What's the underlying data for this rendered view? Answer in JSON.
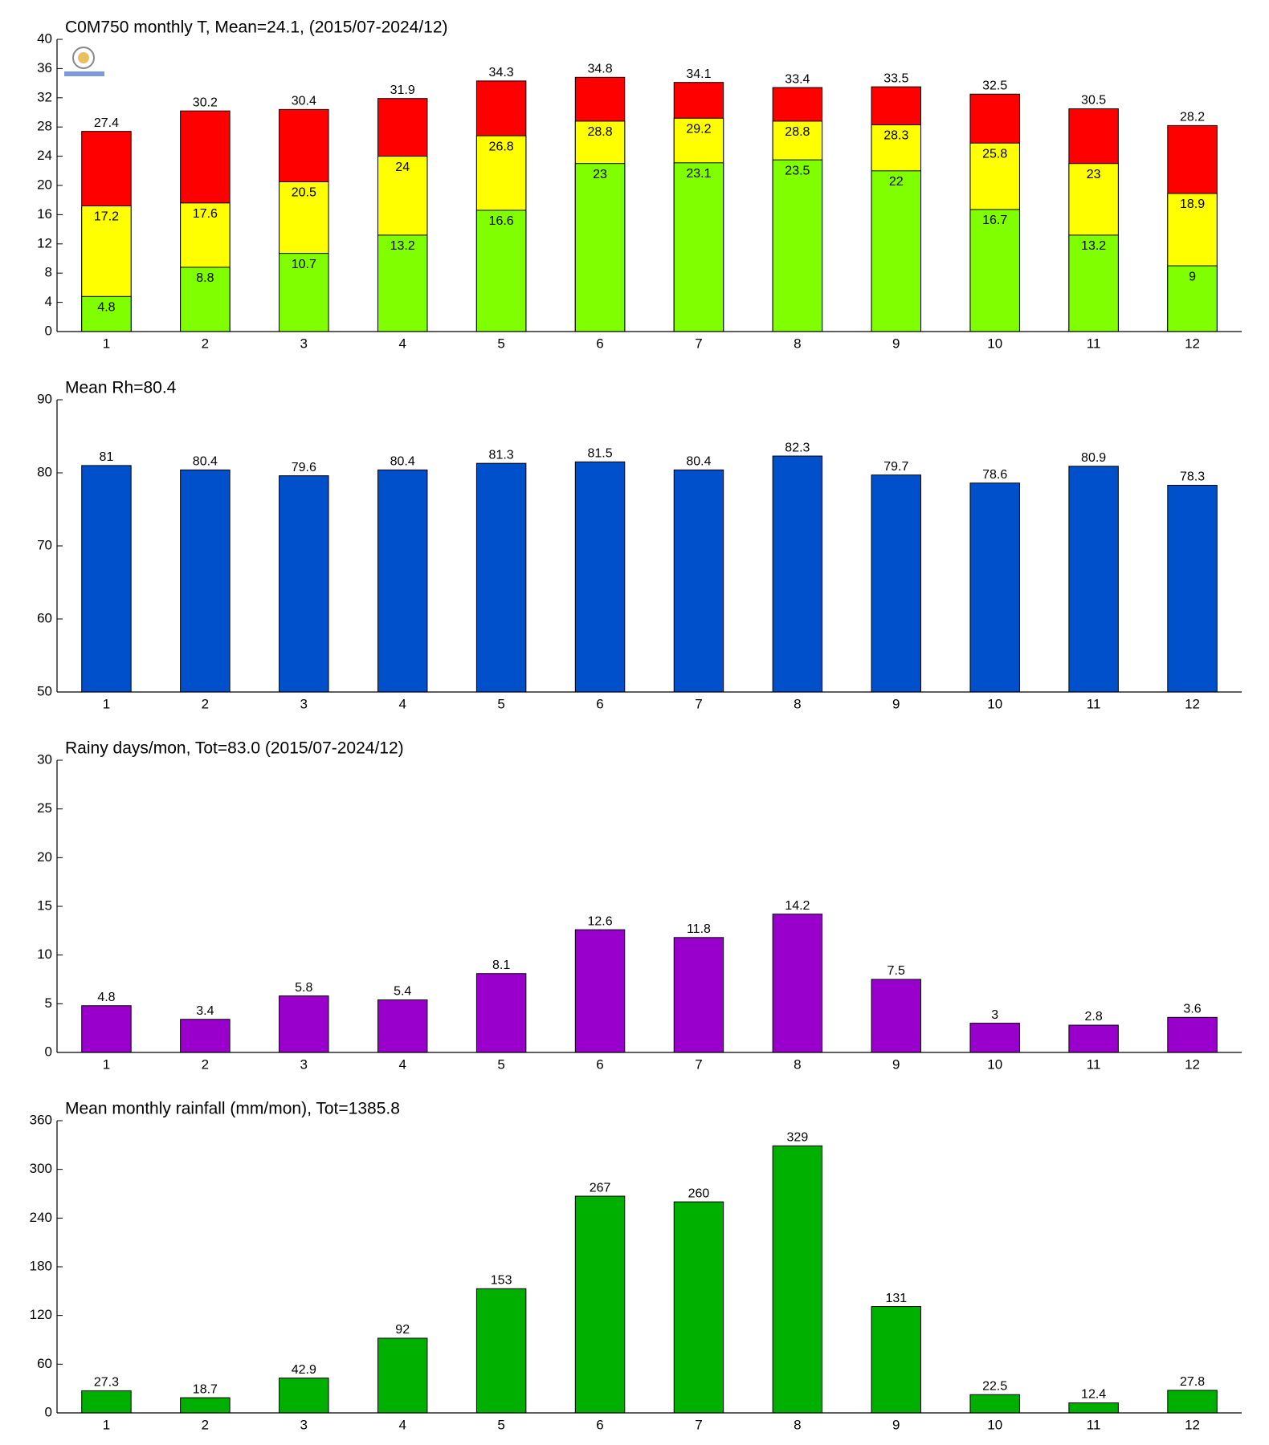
{
  "chart_data": [
    {
      "type": "bar",
      "title": "C0M750 monthly T, Mean=24.1, (2015/07-2024/12)",
      "categories": [
        1,
        2,
        3,
        4,
        5,
        6,
        7,
        8,
        9,
        10,
        11,
        12
      ],
      "series": [
        {
          "color": "#ff0000",
          "values": [
            27.4,
            30.2,
            30.4,
            31.9,
            34.3,
            34.8,
            34.1,
            33.4,
            33.5,
            32.5,
            30.5,
            28.2
          ]
        },
        {
          "color": "#ffff00",
          "values": [
            17.2,
            17.6,
            20.5,
            24,
            26.8,
            28.8,
            29.2,
            28.8,
            28.3,
            25.8,
            23,
            18.9
          ]
        },
        {
          "color": "#80ff00",
          "values": [
            4.8,
            8.8,
            10.7,
            13.2,
            16.6,
            23,
            23.1,
            23.5,
            22,
            16.7,
            13.2,
            9
          ]
        }
      ],
      "ylim": [
        0,
        40
      ],
      "yticks": [
        0,
        4,
        8,
        12,
        16,
        20,
        24,
        28,
        32,
        36,
        40
      ]
    },
    {
      "type": "bar",
      "title": "Mean Rh=80.4",
      "categories": [
        1,
        2,
        3,
        4,
        5,
        6,
        7,
        8,
        9,
        10,
        11,
        12
      ],
      "series": [
        {
          "color": "#0050cc",
          "values": [
            81,
            80.4,
            79.6,
            80.4,
            81.3,
            81.5,
            80.4,
            82.3,
            79.7,
            78.6,
            80.9,
            78.3
          ]
        }
      ],
      "ylim": [
        50,
        90
      ],
      "yticks": [
        50,
        60,
        70,
        80,
        90
      ]
    },
    {
      "type": "bar",
      "title": "Rainy days/mon, Tot=83.0 (2015/07-2024/12)",
      "categories": [
        1,
        2,
        3,
        4,
        5,
        6,
        7,
        8,
        9,
        10,
        11,
        12
      ],
      "series": [
        {
          "color": "#9900cc",
          "values": [
            4.8,
            3.4,
            5.8,
            5.4,
            8.1,
            12.6,
            11.8,
            14.2,
            7.5,
            3,
            2.8,
            3.6
          ]
        }
      ],
      "ylim": [
        0,
        30
      ],
      "yticks": [
        0,
        5,
        10,
        15,
        20,
        25,
        30
      ]
    },
    {
      "type": "bar",
      "title": "Mean monthly rainfall (mm/mon), Tot=1385.8",
      "categories": [
        1,
        2,
        3,
        4,
        5,
        6,
        7,
        8,
        9,
        10,
        11,
        12
      ],
      "series": [
        {
          "color": "#00b000",
          "values": [
            27.3,
            18.7,
            42.9,
            92,
            153,
            267,
            260,
            329,
            131,
            22.5,
            12.4,
            27.8
          ]
        }
      ],
      "ylim": [
        0,
        360
      ],
      "yticks": [
        0,
        60,
        120,
        180,
        240,
        300,
        360
      ]
    }
  ]
}
